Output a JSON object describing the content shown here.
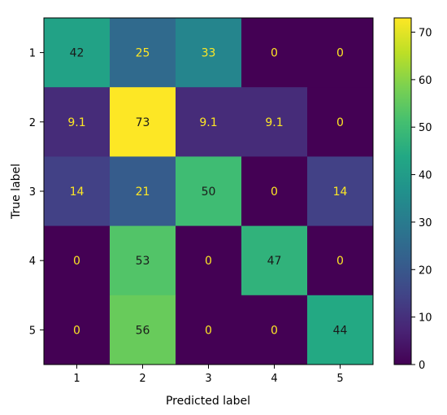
{
  "chart_data": {
    "type": "heatmap",
    "title": "",
    "xlabel": "Predicted label",
    "ylabel": "True label",
    "x_categories": [
      "1",
      "2",
      "3",
      "4",
      "5"
    ],
    "y_categories": [
      "1",
      "2",
      "3",
      "4",
      "5"
    ],
    "values": [
      [
        42,
        25,
        33,
        0,
        0
      ],
      [
        9.1,
        73,
        9.1,
        9.1,
        0
      ],
      [
        14,
        21,
        50,
        0,
        14
      ],
      [
        0,
        53,
        0,
        47,
        0
      ],
      [
        0,
        56,
        0,
        0,
        44
      ]
    ],
    "labels": [
      [
        "42",
        "25",
        "33",
        "0",
        "0"
      ],
      [
        "9.1",
        "73",
        "9.1",
        "9.1",
        "0"
      ],
      [
        "14",
        "21",
        "50",
        "0",
        "14"
      ],
      [
        "0",
        "53",
        "0",
        "47",
        "0"
      ],
      [
        "0",
        "56",
        "0",
        "0",
        "44"
      ]
    ],
    "colormap": "viridis",
    "vmin": 0,
    "vmax": 73,
    "colorbar_ticks": [
      "0",
      "10",
      "20",
      "30",
      "40",
      "50",
      "60",
      "70"
    ],
    "grid": false,
    "colors": {
      "label_dark": "#1a1a1a",
      "label_light": "#fde725",
      "axis": "#000000"
    }
  }
}
